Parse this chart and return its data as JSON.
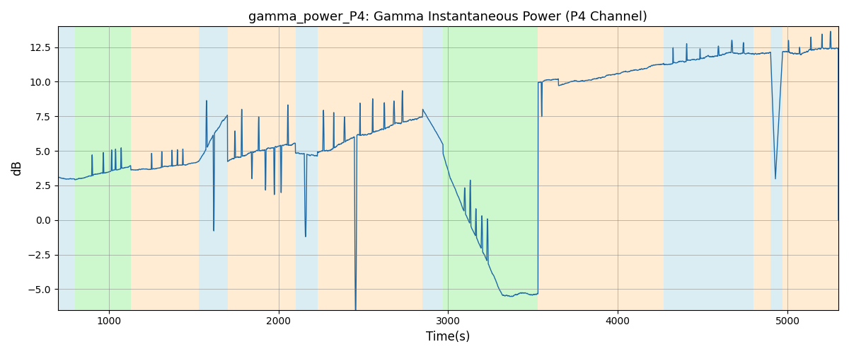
{
  "title": "gamma_power_P4: Gamma Instantaneous Power (P4 Channel)",
  "xlabel": "Time(s)",
  "ylabel": "dB",
  "xlim": [
    700,
    5300
  ],
  "ylim": [
    -6.5,
    14.0
  ],
  "yticks": [
    -5.0,
    -2.5,
    0.0,
    2.5,
    5.0,
    7.5,
    10.0,
    12.5
  ],
  "xticks": [
    1000,
    2000,
    3000,
    4000,
    5000
  ],
  "bg_bands": [
    {
      "xstart": 700,
      "xend": 800,
      "color": "#add8e6",
      "alpha": 0.45
    },
    {
      "xstart": 800,
      "xend": 1130,
      "color": "#90ee90",
      "alpha": 0.45
    },
    {
      "xstart": 1130,
      "xend": 1530,
      "color": "#ffd59e",
      "alpha": 0.45
    },
    {
      "xstart": 1530,
      "xend": 1700,
      "color": "#add8e6",
      "alpha": 0.45
    },
    {
      "xstart": 1700,
      "xend": 2100,
      "color": "#ffd59e",
      "alpha": 0.45
    },
    {
      "xstart": 2100,
      "xend": 2230,
      "color": "#add8e6",
      "alpha": 0.45
    },
    {
      "xstart": 2230,
      "xend": 2850,
      "color": "#ffd59e",
      "alpha": 0.45
    },
    {
      "xstart": 2850,
      "xend": 2970,
      "color": "#add8e6",
      "alpha": 0.45
    },
    {
      "xstart": 2970,
      "xend": 3530,
      "color": "#90ee90",
      "alpha": 0.45
    },
    {
      "xstart": 3530,
      "xend": 3650,
      "color": "#ffd59e",
      "alpha": 0.45
    },
    {
      "xstart": 3650,
      "xend": 4270,
      "color": "#ffd59e",
      "alpha": 0.45
    },
    {
      "xstart": 4270,
      "xend": 4800,
      "color": "#add8e6",
      "alpha": 0.45
    },
    {
      "xstart": 4800,
      "xend": 4900,
      "color": "#ffd59e",
      "alpha": 0.45
    },
    {
      "xstart": 4900,
      "xend": 4970,
      "color": "#add8e6",
      "alpha": 0.45
    },
    {
      "xstart": 4970,
      "xend": 5300,
      "color": "#ffd59e",
      "alpha": 0.45
    }
  ],
  "line_color": "#1f6aa5",
  "line_width": 1.0,
  "seed": 42,
  "title_fontsize": 13
}
